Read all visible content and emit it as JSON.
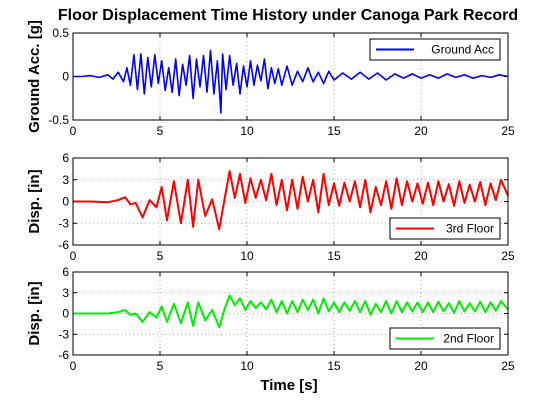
{
  "title": "Floor Displacement Time History under Canoga Park Record",
  "xlabel": "Time [s]",
  "chart_data": [
    {
      "type": "line",
      "ylabel": "Ground Acc. [g]",
      "xlim": [
        0,
        25
      ],
      "ylim": [
        -0.5,
        0.5
      ],
      "xticks": [
        "0",
        "5",
        "10",
        "15",
        "20",
        "25"
      ],
      "yticks": [
        "-0.5",
        "0",
        "0.5"
      ],
      "grid": true,
      "legend": "top-right",
      "series": [
        {
          "name": "Ground Acc",
          "color": "#0000ff",
          "x": [
            0,
            0.5,
            1,
            1.5,
            2,
            2.3,
            2.6,
            2.9,
            3.1,
            3.3,
            3.5,
            3.7,
            3.9,
            4.1,
            4.3,
            4.5,
            4.7,
            4.9,
            5.1,
            5.3,
            5.5,
            5.7,
            5.9,
            6.1,
            6.3,
            6.5,
            6.7,
            6.9,
            7.1,
            7.3,
            7.5,
            7.7,
            7.9,
            8.1,
            8.3,
            8.5,
            8.6,
            8.8,
            9.0,
            9.2,
            9.4,
            9.6,
            9.8,
            10.0,
            10.2,
            10.4,
            10.6,
            10.8,
            11.0,
            11.2,
            11.4,
            11.6,
            11.8,
            12.0,
            12.3,
            12.6,
            12.9,
            13.2,
            13.5,
            13.8,
            14.1,
            14.4,
            14.7,
            15.0,
            15.5,
            16.0,
            16.5,
            17.0,
            17.5,
            18.0,
            18.5,
            19.0,
            19.5,
            20.0,
            20.5,
            21.0,
            21.5,
            22.0,
            22.5,
            23.0,
            23.5,
            24.0,
            24.5,
            25.0
          ],
          "values": [
            0,
            0,
            0.01,
            -0.01,
            0.02,
            -0.03,
            0.05,
            -0.06,
            0.1,
            -0.1,
            0.25,
            -0.15,
            0.26,
            -0.2,
            0.22,
            -0.12,
            0.25,
            -0.08,
            0.18,
            -0.16,
            0.1,
            -0.18,
            0.2,
            -0.22,
            0.14,
            -0.1,
            0.24,
            -0.25,
            0.2,
            -0.12,
            0.24,
            -0.18,
            0.3,
            -0.2,
            0.18,
            -0.42,
            0.26,
            -0.15,
            0.24,
            -0.1,
            0.15,
            -0.2,
            0.12,
            -0.12,
            0.18,
            -0.1,
            0.13,
            -0.05,
            0.2,
            -0.14,
            0.1,
            -0.08,
            0.09,
            -0.1,
            0.12,
            -0.1,
            0.06,
            -0.06,
            0.1,
            -0.06,
            0.05,
            -0.08,
            0.06,
            -0.04,
            0.04,
            -0.03,
            0.05,
            -0.03,
            0.04,
            -0.04,
            0.03,
            -0.02,
            0.03,
            -0.02,
            0.02,
            -0.02,
            0.03,
            -0.01,
            0.02,
            -0.02,
            0.01,
            -0.01,
            0.02,
            0
          ]
        }
      ]
    },
    {
      "type": "line",
      "ylabel": "Disp. [in]",
      "xlim": [
        0,
        25
      ],
      "ylim": [
        -6,
        6
      ],
      "xticks": [
        "0",
        "5",
        "10",
        "15",
        "20",
        "25"
      ],
      "yticks": [
        "-6",
        "-3",
        "0",
        "3",
        "6"
      ],
      "grid": true,
      "legend": "bottom-right",
      "series": [
        {
          "name": "3rd Floor",
          "color": "#ff0000",
          "x": [
            0,
            1,
            2,
            2.6,
            3.0,
            3.3,
            3.6,
            4.0,
            4.4,
            4.8,
            5.1,
            5.4,
            5.8,
            6.2,
            6.6,
            6.9,
            7.2,
            7.6,
            8.0,
            8.4,
            8.7,
            9.0,
            9.3,
            9.6,
            9.9,
            10.2,
            10.5,
            10.8,
            11.1,
            11.4,
            11.7,
            12.0,
            12.3,
            12.6,
            12.9,
            13.2,
            13.5,
            13.8,
            14.1,
            14.4,
            14.7,
            15.0,
            15.3,
            15.6,
            15.9,
            16.2,
            16.5,
            16.8,
            17.1,
            17.4,
            17.7,
            18.0,
            18.3,
            18.6,
            18.9,
            19.2,
            19.5,
            19.8,
            20.1,
            20.4,
            20.7,
            21.0,
            21.3,
            21.6,
            21.9,
            22.2,
            22.5,
            22.8,
            23.1,
            23.4,
            23.7,
            24.0,
            24.3,
            24.6,
            25.0
          ],
          "values": [
            0,
            0,
            -0.1,
            0.2,
            0.6,
            -0.4,
            -0.2,
            -2.2,
            0.2,
            -0.8,
            2.0,
            -2.6,
            2.8,
            -3.0,
            3.0,
            -3.5,
            3.0,
            -2.0,
            0.3,
            -3.8,
            0.2,
            4.2,
            0.5,
            3.8,
            -0.2,
            3.2,
            0.5,
            3.0,
            0.2,
            3.8,
            -0.5,
            3.0,
            -1.2,
            3.0,
            -1.0,
            3.4,
            0.0,
            3.0,
            -1.5,
            3.8,
            -0.5,
            2.5,
            -0.6,
            2.6,
            0.0,
            2.8,
            -0.8,
            3.0,
            -1.5,
            2.0,
            -0.5,
            2.8,
            -1.0,
            3.2,
            -0.5,
            2.8,
            0.0,
            2.5,
            -0.3,
            2.6,
            -0.5,
            2.8,
            0.0,
            2.4,
            -0.6,
            2.8,
            -0.2,
            2.3,
            0.0,
            2.7,
            -0.5,
            2.5,
            0.2,
            3.0,
            0.8
          ]
        }
      ]
    },
    {
      "type": "line",
      "ylabel": "Disp. [in]",
      "xlim": [
        0,
        25
      ],
      "ylim": [
        -6,
        6
      ],
      "xticks": [
        "0",
        "5",
        "10",
        "15",
        "20",
        "25"
      ],
      "yticks": [
        "-6",
        "-3",
        "0",
        "3",
        "6"
      ],
      "grid": true,
      "legend": "bottom-right",
      "series": [
        {
          "name": "2nd Floor",
          "color": "#00ee00",
          "x": [
            0,
            1,
            2,
            2.6,
            3.0,
            3.3,
            3.6,
            4.0,
            4.4,
            4.8,
            5.1,
            5.4,
            5.8,
            6.2,
            6.6,
            6.9,
            7.2,
            7.6,
            8.0,
            8.4,
            8.7,
            9.0,
            9.3,
            9.6,
            9.9,
            10.2,
            10.5,
            10.8,
            11.1,
            11.4,
            11.7,
            12.0,
            12.3,
            12.6,
            12.9,
            13.2,
            13.5,
            13.8,
            14.1,
            14.4,
            14.7,
            15.0,
            15.3,
            15.6,
            15.9,
            16.2,
            16.5,
            16.8,
            17.1,
            17.4,
            17.7,
            18.0,
            18.3,
            18.6,
            18.9,
            19.2,
            19.5,
            19.8,
            20.1,
            20.4,
            20.7,
            21.0,
            21.3,
            21.6,
            21.9,
            22.2,
            22.5,
            22.8,
            23.1,
            23.4,
            23.7,
            24.0,
            24.3,
            24.6,
            25.0
          ],
          "values": [
            0,
            0,
            0,
            0.2,
            0.5,
            -0.2,
            0.0,
            -1.2,
            0.2,
            -0.6,
            1.0,
            -1.2,
            1.4,
            -1.4,
            1.6,
            -1.8,
            1.6,
            -1.0,
            0.5,
            -2.0,
            0.6,
            2.6,
            1.2,
            2.2,
            0.5,
            1.8,
            0.8,
            1.6,
            0.6,
            2.0,
            0.2,
            1.8,
            0.0,
            1.8,
            0.2,
            2.0,
            0.5,
            2.0,
            0.0,
            2.2,
            0.3,
            1.6,
            0.2,
            1.6,
            0.4,
            1.8,
            0.2,
            1.8,
            -0.2,
            1.4,
            0.2,
            1.8,
            0.0,
            1.8,
            0.2,
            1.6,
            0.3,
            1.6,
            0.2,
            1.6,
            0.2,
            1.7,
            0.3,
            1.5,
            0.1,
            1.8,
            0.3,
            1.5,
            0.3,
            1.7,
            0.2,
            1.6,
            0.4,
            1.8,
            0.6
          ]
        }
      ]
    }
  ]
}
